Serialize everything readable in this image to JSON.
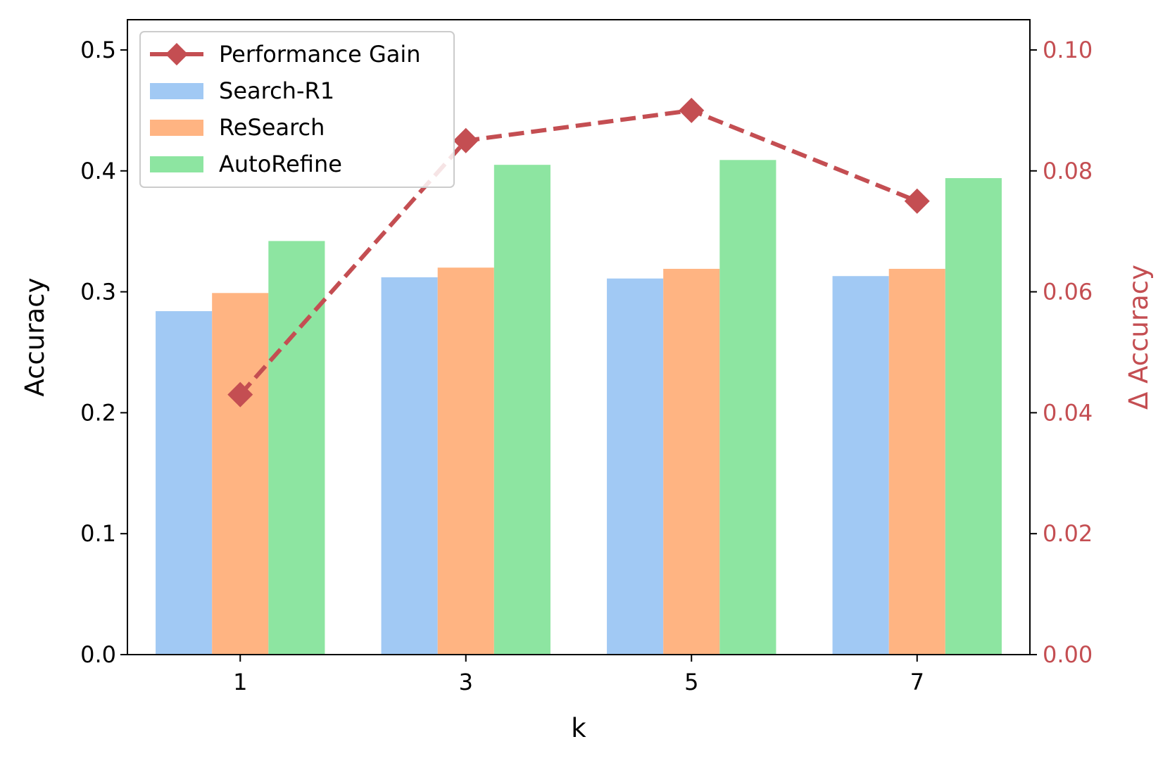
{
  "chart_data": {
    "type": "bar",
    "title": "",
    "xlabel": "k",
    "ylabel": "Accuracy",
    "y2label": "Δ Accuracy",
    "categories": [
      "1",
      "3",
      "5",
      "7"
    ],
    "ylim": [
      0,
      0.525
    ],
    "y2lim": [
      0,
      0.105
    ],
    "yticks": [
      "0.0",
      "0.1",
      "0.2",
      "0.3",
      "0.4",
      "0.5"
    ],
    "y2ticks": [
      "0.00",
      "0.02",
      "0.04",
      "0.06",
      "0.08",
      "0.10"
    ],
    "grid": false,
    "legend_position": "top-left",
    "series": [
      {
        "name": "Search-R1",
        "type": "bar",
        "color": "#a1c9f4",
        "values": [
          0.284,
          0.312,
          0.311,
          0.313
        ]
      },
      {
        "name": "ReSearch",
        "type": "bar",
        "color": "#ffb482",
        "values": [
          0.299,
          0.32,
          0.319,
          0.319
        ]
      },
      {
        "name": "AutoRefine",
        "type": "bar",
        "color": "#8de5a1",
        "values": [
          0.342,
          0.405,
          0.409,
          0.394
        ]
      },
      {
        "name": "Performance Gain",
        "type": "line",
        "axis": "right",
        "style": "dashed",
        "marker": "diamond",
        "color": "#c44e52",
        "values": [
          0.043,
          0.085,
          0.09,
          0.075
        ]
      }
    ]
  }
}
